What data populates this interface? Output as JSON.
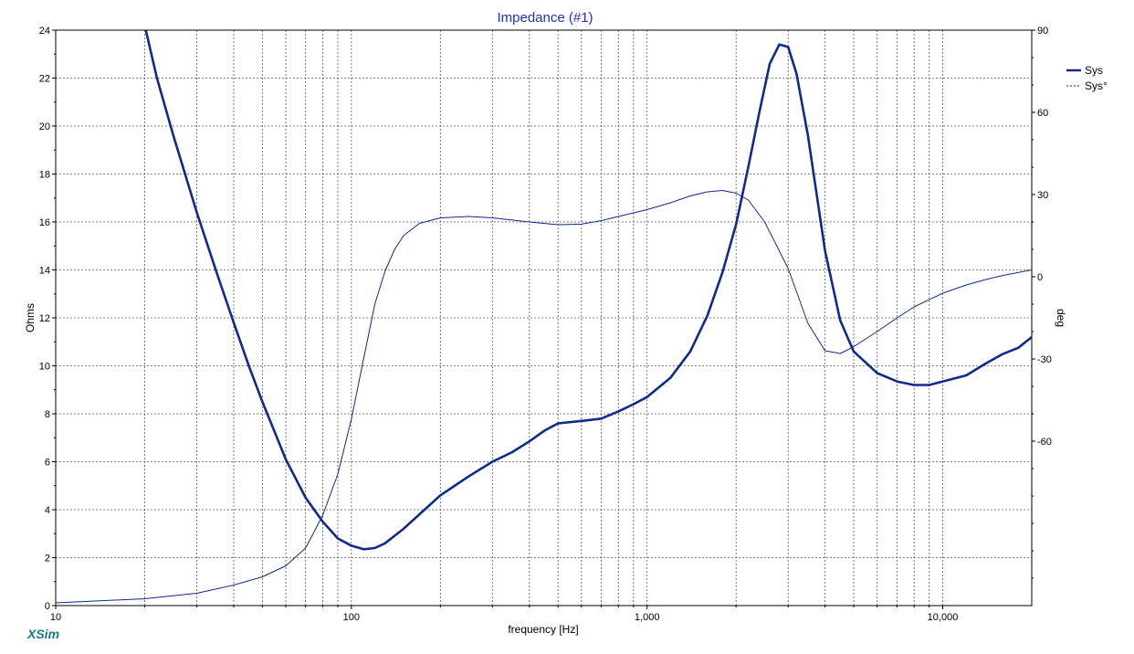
{
  "chart_data": {
    "type": "line",
    "title": "Impedance (#1)",
    "xlabel": "frequency [Hz]",
    "ylabel": "Ohms",
    "y2label": "deg",
    "xscale": "log",
    "xlim": [
      10,
      20000
    ],
    "ylim": [
      0,
      24
    ],
    "y2lim": [
      -120,
      90
    ],
    "xticks": [
      {
        "value": 10,
        "label": "10"
      },
      {
        "value": 100,
        "label": "100"
      },
      {
        "value": 1000,
        "label": "1,000"
      },
      {
        "value": 10000,
        "label": "10,000"
      }
    ],
    "yticks": [
      0,
      2,
      4,
      6,
      8,
      10,
      12,
      14,
      16,
      18,
      20,
      22,
      24
    ],
    "y2ticks": [
      90,
      60,
      30,
      0,
      -30,
      -60
    ],
    "grid": {
      "x": true,
      "y": true
    },
    "legend_position": "top-right",
    "series": [
      {
        "name": "Sys",
        "axis": "left",
        "style": "solid-thick",
        "points": [
          [
            20,
            24.2
          ],
          [
            22,
            22.0
          ],
          [
            25,
            19.6
          ],
          [
            30,
            16.4
          ],
          [
            35,
            13.9
          ],
          [
            40,
            11.8
          ],
          [
            45,
            10.0
          ],
          [
            50,
            8.5
          ],
          [
            60,
            6.1
          ],
          [
            70,
            4.5
          ],
          [
            80,
            3.5
          ],
          [
            90,
            2.8
          ],
          [
            100,
            2.5
          ],
          [
            110,
            2.35
          ],
          [
            120,
            2.4
          ],
          [
            130,
            2.6
          ],
          [
            150,
            3.2
          ],
          [
            200,
            4.6
          ],
          [
            250,
            5.4
          ],
          [
            300,
            6.0
          ],
          [
            350,
            6.4
          ],
          [
            400,
            6.85
          ],
          [
            450,
            7.3
          ],
          [
            500,
            7.6
          ],
          [
            600,
            7.7
          ],
          [
            700,
            7.8
          ],
          [
            800,
            8.1
          ],
          [
            900,
            8.4
          ],
          [
            1000,
            8.7
          ],
          [
            1200,
            9.5
          ],
          [
            1400,
            10.6
          ],
          [
            1600,
            12.1
          ],
          [
            1800,
            13.9
          ],
          [
            2000,
            15.9
          ],
          [
            2200,
            18.3
          ],
          [
            2400,
            20.6
          ],
          [
            2600,
            22.6
          ],
          [
            2800,
            23.4
          ],
          [
            3000,
            23.3
          ],
          [
            3200,
            22.2
          ],
          [
            3500,
            19.6
          ],
          [
            4000,
            14.8
          ],
          [
            4500,
            11.9
          ],
          [
            5000,
            10.6
          ],
          [
            6000,
            9.7
          ],
          [
            7000,
            9.35
          ],
          [
            8000,
            9.2
          ],
          [
            9000,
            9.2
          ],
          [
            10000,
            9.35
          ],
          [
            12000,
            9.6
          ],
          [
            14000,
            10.1
          ],
          [
            16000,
            10.5
          ],
          [
            18000,
            10.75
          ],
          [
            20000,
            11.2
          ]
        ]
      },
      {
        "name": "Sys°",
        "axis": "right",
        "style": "thin",
        "points": [
          [
            10,
            -119
          ],
          [
            20,
            -117.5
          ],
          [
            30,
            -115.5
          ],
          [
            40,
            -112.5
          ],
          [
            50,
            -109.5
          ],
          [
            60,
            -105.5
          ],
          [
            70,
            -99
          ],
          [
            80,
            -87
          ],
          [
            90,
            -72
          ],
          [
            100,
            -52
          ],
          [
            110,
            -30
          ],
          [
            120,
            -10
          ],
          [
            130,
            2
          ],
          [
            140,
            10
          ],
          [
            150,
            15
          ],
          [
            170,
            19.5
          ],
          [
            200,
            21.5
          ],
          [
            250,
            22
          ],
          [
            300,
            21.5
          ],
          [
            400,
            20
          ],
          [
            500,
            19
          ],
          [
            600,
            19.2
          ],
          [
            700,
            20.5
          ],
          [
            800,
            22
          ],
          [
            1000,
            24.5
          ],
          [
            1200,
            27
          ],
          [
            1400,
            29.5
          ],
          [
            1600,
            31
          ],
          [
            1800,
            31.5
          ],
          [
            2000,
            30.5
          ],
          [
            2200,
            28
          ],
          [
            2500,
            20
          ],
          [
            3000,
            3
          ],
          [
            3500,
            -17
          ],
          [
            4000,
            -27
          ],
          [
            4500,
            -28
          ],
          [
            5000,
            -25.5
          ],
          [
            6000,
            -20
          ],
          [
            7000,
            -15
          ],
          [
            8000,
            -11
          ],
          [
            10000,
            -6
          ],
          [
            12000,
            -3
          ],
          [
            14000,
            -1
          ],
          [
            16000,
            0.5
          ],
          [
            20000,
            2.5
          ]
        ]
      }
    ]
  },
  "footer": {
    "brand": "XSim"
  },
  "colors": {
    "curve": "#102a8c",
    "title": "#2233aa",
    "grid": "#555555",
    "brand": "#1a7a8a"
  }
}
